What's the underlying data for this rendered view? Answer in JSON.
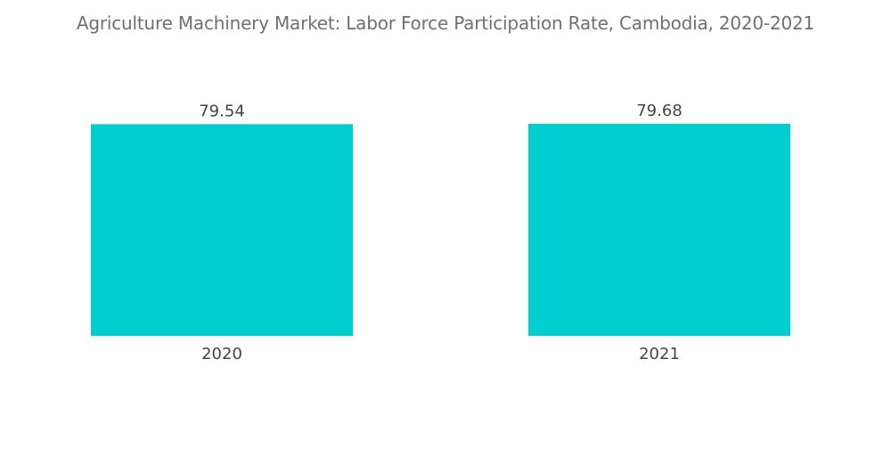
{
  "chart_data": {
    "type": "bar",
    "title": "Agriculture Machinery Market: Labor Force Participation Rate, Cambodia, 2020-2021",
    "categories": [
      "2020",
      "2021"
    ],
    "values": [
      79.54,
      79.68
    ],
    "value_labels": [
      "79.54",
      "79.68"
    ],
    "xlabel": "",
    "ylabel": "",
    "ylim": [
      0,
      80
    ],
    "grid": false,
    "legend": "none",
    "bar_color": "#00CED1"
  }
}
